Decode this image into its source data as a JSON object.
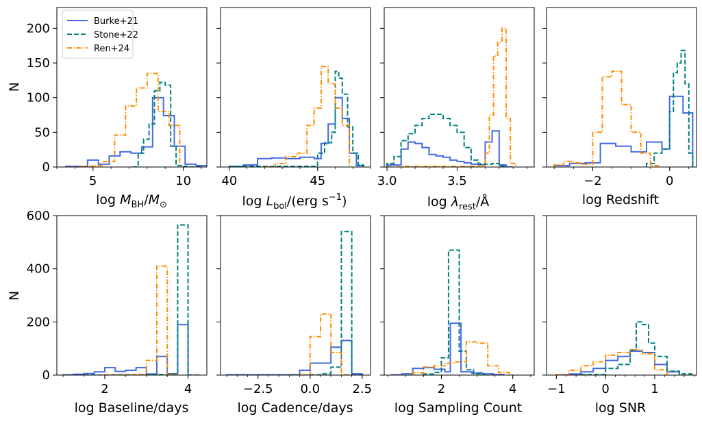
{
  "colors": {
    "burke": "#4169e1",
    "stone": "#008080",
    "ren": "#ff8c00"
  },
  "legend": {
    "placement": "upper-left",
    "entries": [
      {
        "label": "Burke+21",
        "style": "solid",
        "color": "#4169e1"
      },
      {
        "label": "Stone+22",
        "style": "dashed",
        "color": "#008080"
      },
      {
        "label": "Ren+24",
        "style": "dashdot",
        "color": "#ff8c00"
      }
    ]
  },
  "chart_data": [
    {
      "type": "histogram-step",
      "row": 0,
      "col": 0,
      "xlabel_plain": "log M_BH/M_sun",
      "xlim": [
        3.0,
        11.3
      ],
      "ylim": [
        0,
        230
      ],
      "xticks": [
        5,
        10
      ],
      "xticklabels": [
        "5",
        "10"
      ],
      "yticks": [
        0,
        50,
        100,
        150,
        200
      ],
      "yticklabels": [
        "0",
        "50",
        "100",
        "150",
        "200"
      ],
      "ylabel": "N",
      "series": [
        {
          "name": "Burke+21",
          "edges": [
            3.5,
            4.1,
            4.7,
            5.3,
            5.9,
            6.5,
            7.1,
            7.7,
            8.3,
            8.9,
            9.5,
            10.1,
            10.7,
            11.3
          ],
          "counts": [
            1,
            1,
            10,
            4,
            16,
            22,
            20,
            29,
            100,
            74,
            30,
            4,
            2
          ]
        },
        {
          "name": "Stone+22",
          "edges": [
            7.2,
            7.5,
            7.8,
            8.1,
            8.4,
            8.7,
            9.0,
            9.3,
            9.6,
            9.9,
            10.2,
            10.5,
            10.8,
            11.1
          ],
          "counts": [
            0,
            20,
            40,
            62,
            110,
            122,
            118,
            30,
            2,
            1,
            0,
            0,
            0
          ]
        },
        {
          "name": "Ren+24",
          "edges": [
            3.8,
            4.4,
            5.0,
            5.6,
            6.2,
            6.8,
            7.4,
            8.0,
            8.6,
            9.2,
            9.8
          ],
          "counts": [
            0,
            1,
            2,
            8,
            46,
            88,
            114,
            135,
            80,
            60,
            1
          ]
        }
      ]
    },
    {
      "type": "histogram-step",
      "row": 0,
      "col": 1,
      "xlabel_plain": "log L_bol/(erg s^-1)",
      "xlim": [
        39.5,
        48.0
      ],
      "ylim": [
        0,
        230
      ],
      "xticks": [
        40,
        45
      ],
      "xticklabels": [
        "40",
        "45"
      ],
      "yticks": [
        0,
        50,
        100,
        150,
        200
      ],
      "yticklabels": [
        "",
        "",
        "",
        "",
        ""
      ],
      "series": [
        {
          "name": "Burke+21",
          "edges": [
            40.0,
            40.8,
            41.6,
            42.4,
            43.2,
            44.0,
            44.8,
            45.2,
            45.6,
            46.0,
            46.4,
            46.8,
            47.2,
            47.6
          ],
          "counts": [
            1,
            3,
            12,
            13,
            12,
            14,
            12,
            34,
            62,
            100,
            70,
            20,
            2
          ]
        },
        {
          "name": "Stone+22",
          "edges": [
            40.0,
            41.0,
            42.0,
            42.6,
            43.2,
            43.8,
            44.4,
            45.0,
            45.4,
            45.8,
            46.0,
            46.2,
            46.4,
            46.7,
            47.0,
            47.3,
            47.6
          ],
          "counts": [
            1,
            1,
            1,
            1,
            1,
            1,
            1,
            20,
            35,
            50,
            138,
            128,
            105,
            58,
            20,
            3
          ]
        },
        {
          "name": "Ren+24",
          "edges": [
            42.0,
            42.6,
            43.2,
            43.8,
            44.4,
            44.8,
            45.2,
            45.6,
            46.0,
            46.4,
            46.8
          ],
          "counts": [
            0,
            5,
            15,
            20,
            60,
            85,
            145,
            120,
            85,
            60,
            1
          ]
        }
      ]
    },
    {
      "type": "histogram-step",
      "row": 0,
      "col": 2,
      "xlabel_plain": "log lambda_rest/A",
      "xlim": [
        2.98,
        4.05
      ],
      "ylim": [
        0,
        230
      ],
      "xticks": [
        3.0,
        3.5
      ],
      "xticklabels": [
        "3.0",
        "3.5"
      ],
      "yticks": [
        0,
        50,
        100,
        150,
        200
      ],
      "yticklabels": [
        "",
        "",
        "",
        "",
        ""
      ],
      "series": [
        {
          "name": "Burke+21",
          "edges": [
            3.0,
            3.1,
            3.15,
            3.2,
            3.25,
            3.3,
            3.35,
            3.4,
            3.45,
            3.5,
            3.55,
            3.6,
            3.65,
            3.7,
            3.75,
            3.8,
            3.85,
            3.9
          ],
          "counts": [
            3,
            26,
            36,
            34,
            28,
            18,
            16,
            14,
            10,
            8,
            6,
            4,
            3,
            36,
            52,
            3,
            0
          ]
        },
        {
          "name": "Stone+22",
          "edges": [
            3.0,
            3.05,
            3.1,
            3.15,
            3.2,
            3.25,
            3.3,
            3.35,
            3.4,
            3.45,
            3.5,
            3.55,
            3.6,
            3.65,
            3.7,
            3.75,
            3.8,
            3.85
          ],
          "counts": [
            5,
            15,
            38,
            48,
            60,
            70,
            76,
            76,
            70,
            60,
            50,
            28,
            10,
            5,
            4,
            5,
            1
          ]
        },
        {
          "name": "Ren+24",
          "edges": [
            3.0,
            3.1,
            3.2,
            3.3,
            3.4,
            3.5,
            3.6,
            3.65,
            3.7,
            3.73,
            3.76,
            3.79,
            3.82,
            3.85,
            3.88,
            3.92
          ],
          "counts": [
            0,
            1,
            1,
            1,
            1,
            1,
            1,
            2,
            20,
            75,
            160,
            180,
            200,
            70,
            5
          ]
        }
      ]
    },
    {
      "type": "histogram-step",
      "row": 0,
      "col": 3,
      "xlabel_plain": "log Redshift",
      "xlim": [
        -3.2,
        0.7
      ],
      "ylim": [
        0,
        230
      ],
      "xticks": [
        -2,
        0
      ],
      "xticklabels": [
        "−2",
        "0"
      ],
      "yticks": [
        0,
        50,
        100,
        150,
        200
      ],
      "yticklabels": [
        "",
        "",
        "",
        "",
        ""
      ],
      "series": [
        {
          "name": "Burke+21",
          "edges": [
            -3.0,
            -2.6,
            -2.2,
            -1.8,
            -1.4,
            -1.0,
            -0.6,
            -0.2,
            0.0,
            0.35,
            0.6
          ],
          "counts": [
            2,
            5,
            6,
            34,
            30,
            22,
            36,
            26,
            102,
            78
          ]
        },
        {
          "name": "Stone+22",
          "edges": [
            -0.6,
            -0.4,
            -0.2,
            0.0,
            0.1,
            0.2,
            0.3,
            0.4,
            0.5,
            0.6
          ],
          "counts": [
            5,
            20,
            26,
            80,
            136,
            150,
            168,
            120,
            20
          ]
        },
        {
          "name": "Ren+24",
          "edges": [
            -3.0,
            -2.75,
            -2.5,
            -2.25,
            -2.0,
            -1.75,
            -1.5,
            -1.25,
            -1.0,
            -0.75,
            -0.5,
            -0.25
          ],
          "counts": [
            3,
            8,
            6,
            4,
            50,
            130,
            138,
            90,
            50,
            20,
            2
          ]
        }
      ]
    },
    {
      "type": "histogram-step",
      "row": 1,
      "col": 0,
      "xlabel_plain": "log Baseline/days",
      "xlim": [
        0.85,
        4.45
      ],
      "ylim": [
        0,
        600
      ],
      "xticks": [
        2,
        4
      ],
      "xticklabels": [
        "2",
        "4"
      ],
      "yticks": [
        0,
        200,
        400,
        600
      ],
      "yticklabels": [
        "0",
        "200",
        "400",
        "600"
      ],
      "ylabel": "N",
      "series": [
        {
          "name": "Burke+21",
          "edges": [
            1.0,
            1.25,
            1.5,
            1.75,
            2.0,
            2.25,
            2.5,
            2.75,
            3.0,
            3.25,
            3.5,
            3.75,
            4.0
          ],
          "counts": [
            1,
            3,
            6,
            12,
            28,
            14,
            18,
            28,
            4,
            70,
            5,
            190
          ]
        },
        {
          "name": "Stone+22",
          "edges": [
            1.5,
            2.0,
            2.5,
            3.0,
            3.25,
            3.5,
            3.75,
            4.0,
            4.3
          ],
          "counts": [
            0,
            1,
            1,
            1,
            2,
            5,
            565,
            0
          ]
        },
        {
          "name": "Ren+24",
          "edges": [
            2.0,
            2.5,
            3.0,
            3.25,
            3.5,
            3.75
          ],
          "counts": [
            1,
            2,
            55,
            410,
            1
          ]
        }
      ]
    },
    {
      "type": "histogram-step",
      "row": 1,
      "col": 1,
      "xlabel_plain": "log Cadence/days",
      "xlim": [
        -4.3,
        2.9
      ],
      "ylim": [
        0,
        600
      ],
      "xticks": [
        -2.5,
        0.0,
        2.5
      ],
      "xticklabels": [
        "−2.5",
        "0.0",
        "2.5"
      ],
      "yticks": [
        0,
        200,
        400,
        600
      ],
      "yticklabels": [
        "",
        "",
        "",
        ""
      ],
      "series": [
        {
          "name": "Burke+21",
          "edges": [
            -4.0,
            -3.5,
            -3.0,
            -2.5,
            -2.0,
            -1.5,
            -1.0,
            -0.5,
            0.0,
            0.5,
            1.0,
            1.5,
            2.0,
            2.5
          ],
          "counts": [
            1,
            1,
            1,
            1,
            1,
            1,
            1,
            18,
            45,
            45,
            105,
            130,
            5
          ]
        },
        {
          "name": "Stone+22",
          "edges": [
            -1.0,
            0.0,
            0.5,
            1.0,
            1.5,
            2.0,
            2.5
          ],
          "counts": [
            0,
            1,
            5,
            30,
            540,
            0
          ]
        },
        {
          "name": "Ren+24",
          "edges": [
            -0.5,
            0.0,
            0.5,
            1.0,
            1.5,
            2.0
          ],
          "counts": [
            1,
            145,
            230,
            85,
            1
          ]
        }
      ]
    },
    {
      "type": "histogram-step",
      "row": 1,
      "col": 2,
      "xlabel_plain": "log Sampling Count",
      "xlim": [
        0.4,
        4.6
      ],
      "ylim": [
        0,
        600
      ],
      "xticks": [
        2,
        4
      ],
      "xticklabels": [
        "2",
        "4"
      ],
      "yticks": [
        0,
        200,
        400,
        600
      ],
      "yticklabels": [
        "",
        "",
        "",
        ""
      ],
      "series": [
        {
          "name": "Burke+21",
          "edges": [
            0.6,
            0.9,
            1.2,
            1.5,
            1.8,
            2.1,
            2.25,
            2.55,
            2.85,
            3.15,
            3.45,
            3.75
          ],
          "counts": [
            1,
            5,
            25,
            28,
            22,
            12,
            195,
            12,
            8,
            5,
            2
          ]
        },
        {
          "name": "Stone+22",
          "edges": [
            1.5,
            1.8,
            2.0,
            2.2,
            2.5,
            2.7,
            2.9,
            3.2
          ],
          "counts": [
            4,
            10,
            65,
            470,
            90,
            20,
            5
          ]
        },
        {
          "name": "Ren+24",
          "edges": [
            1.2,
            1.5,
            1.8,
            2.1,
            2.4,
            2.7,
            3.0,
            3.3,
            3.6,
            3.9
          ],
          "counts": [
            8,
            30,
            35,
            45,
            50,
            125,
            120,
            35,
            10
          ]
        }
      ]
    },
    {
      "type": "histogram-step",
      "row": 1,
      "col": 3,
      "xlabel_plain": "log SNR",
      "xlim": [
        -1.2,
        1.85
      ],
      "ylim": [
        0,
        600
      ],
      "xticks": [
        -1,
        0,
        1
      ],
      "xticklabels": [
        "−1",
        "0",
        "1"
      ],
      "yticks": [
        0,
        200,
        400,
        600
      ],
      "yticklabels": [
        "",
        "",
        "",
        ""
      ],
      "series": [
        {
          "name": "Burke+21",
          "edges": [
            -1.0,
            -0.75,
            -0.5,
            -0.25,
            0.0,
            0.25,
            0.5,
            0.75,
            1.0,
            1.25,
            1.5
          ],
          "counts": [
            1,
            4,
            12,
            25,
            55,
            70,
            90,
            85,
            40,
            12
          ]
        },
        {
          "name": "Stone+22",
          "edges": [
            -0.5,
            0.0,
            0.25,
            0.5,
            0.625,
            0.75,
            0.875,
            1.0,
            1.25,
            1.5,
            1.75
          ],
          "counts": [
            2,
            25,
            40,
            95,
            200,
            190,
            120,
            70,
            15,
            5
          ]
        },
        {
          "name": "Ren+24",
          "edges": [
            -1.0,
            -0.75,
            -0.5,
            -0.25,
            0.0,
            0.25,
            0.5,
            0.75,
            1.0,
            1.25
          ],
          "counts": [
            1,
            18,
            35,
            50,
            75,
            85,
            95,
            80,
            20
          ]
        }
      ]
    }
  ]
}
